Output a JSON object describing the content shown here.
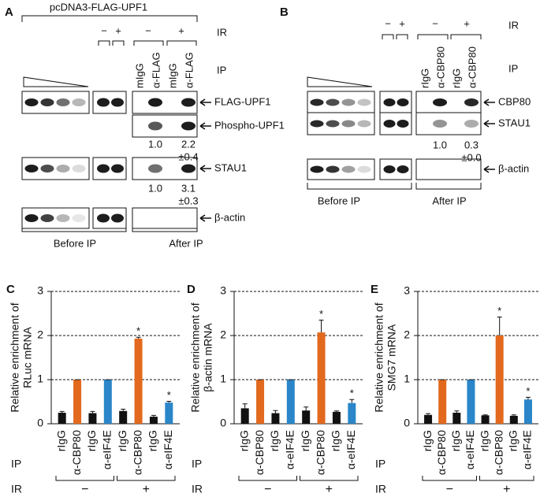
{
  "blot_a": {
    "letter": "A",
    "construct": "pcDNA3-FLAG-UPF1",
    "ir_label": "IR",
    "ip_label": "IP",
    "minus": "−",
    "plus": "+",
    "lanes": [
      "mIgG",
      "α-FLAG",
      "mIgG",
      "α-FLAG"
    ],
    "rows": [
      "FLAG-UPF1",
      "Phospho-UPF1",
      "STAU1",
      "β-actin"
    ],
    "quant": [
      [
        "1.0",
        "2.2",
        "±0.4"
      ],
      [
        "1.0",
        "3.1",
        "±0.3"
      ]
    ],
    "before": "Before IP",
    "after": "After IP"
  },
  "blot_b": {
    "letter": "B",
    "ir_label": "IR",
    "ip_label": "IP",
    "minus": "−",
    "plus": "+",
    "lanes": [
      "rIgG",
      "α-CBP80",
      "rIgG",
      "α-CBP80"
    ],
    "rows": [
      "CBP80",
      "STAU1",
      "β-actin"
    ],
    "quant": [
      [
        "1.0",
        "0.3",
        "±0.0"
      ]
    ],
    "before": "Before IP",
    "after": "After IP"
  },
  "chart_data": [
    {
      "type": "bar",
      "panel": "C",
      "ylabel": [
        "Relative enrichment of",
        "RLuc mRNA"
      ],
      "categories": [
        "rIgG",
        "α-CBP80",
        "rIgG",
        "α-eIF4E",
        "rIgG",
        "α-CBP80",
        "rIgG",
        "α-eIF4E"
      ],
      "values": [
        0.25,
        1,
        0.24,
        1,
        0.29,
        1.93,
        0.16,
        0.48
      ],
      "errors": [
        0.03,
        0,
        0.04,
        0,
        0.04,
        0.03,
        0.03,
        0.03
      ],
      "colors": [
        "#111111",
        "#e2691e",
        "#111111",
        "#2a86c8",
        "#111111",
        "#e2691e",
        "#111111",
        "#2a86c8"
      ],
      "annotations": [
        {
          "index": 5,
          "text": "*"
        },
        {
          "index": 7,
          "text": "*"
        }
      ],
      "ylim": [
        0,
        3
      ],
      "yticks": [
        0,
        1,
        2,
        3
      ],
      "grid": true,
      "x_label": "IP",
      "group_label": "IR",
      "groups": [
        "−",
        "+"
      ]
    },
    {
      "type": "bar",
      "panel": "D",
      "ylabel": [
        "Relative enrichment of",
        "β-actin mRNA"
      ],
      "categories": [
        "rIgG",
        "α-CBP80",
        "rIgG",
        "α-eIF4E",
        "rIgG",
        "α-CBP80",
        "rIgG",
        "α-eIF4E"
      ],
      "values": [
        0.35,
        1,
        0.24,
        1,
        0.3,
        2.07,
        0.27,
        0.47
      ],
      "errors": [
        0.1,
        0,
        0.06,
        0,
        0.08,
        0.28,
        0.02,
        0.08
      ],
      "colors": [
        "#111111",
        "#e2691e",
        "#111111",
        "#2a86c8",
        "#111111",
        "#e2691e",
        "#111111",
        "#2a86c8"
      ],
      "annotations": [
        {
          "index": 5,
          "text": "*"
        },
        {
          "index": 7,
          "text": "*"
        }
      ],
      "ylim": [
        0,
        3
      ],
      "yticks": [
        0,
        1,
        2,
        3
      ],
      "grid": true,
      "x_label": "IP",
      "group_label": "IR",
      "groups": [
        "−",
        "+"
      ]
    },
    {
      "type": "bar",
      "panel": "E",
      "ylabel": [
        "Relative enrichment of",
        "SMG7 mRNA"
      ],
      "categories": [
        "rIgG",
        "α-CBP80",
        "rIgG",
        "α-eIF4E",
        "rIgG",
        "α-CBP80",
        "rIgG",
        "α-eIF4E"
      ],
      "values": [
        0.2,
        1,
        0.25,
        1,
        0.19,
        2.0,
        0.18,
        0.55
      ],
      "errors": [
        0.03,
        0,
        0.04,
        0,
        0.01,
        0.42,
        0.02,
        0.05
      ],
      "colors": [
        "#111111",
        "#e2691e",
        "#111111",
        "#2a86c8",
        "#111111",
        "#e2691e",
        "#111111",
        "#2a86c8"
      ],
      "annotations": [
        {
          "index": 5,
          "text": "*"
        },
        {
          "index": 7,
          "text": "*"
        }
      ],
      "ylim": [
        0,
        3
      ],
      "yticks": [
        0,
        1,
        2,
        3
      ],
      "grid": true,
      "x_label": "IP",
      "group_label": "IR",
      "groups": [
        "−",
        "+"
      ]
    }
  ]
}
